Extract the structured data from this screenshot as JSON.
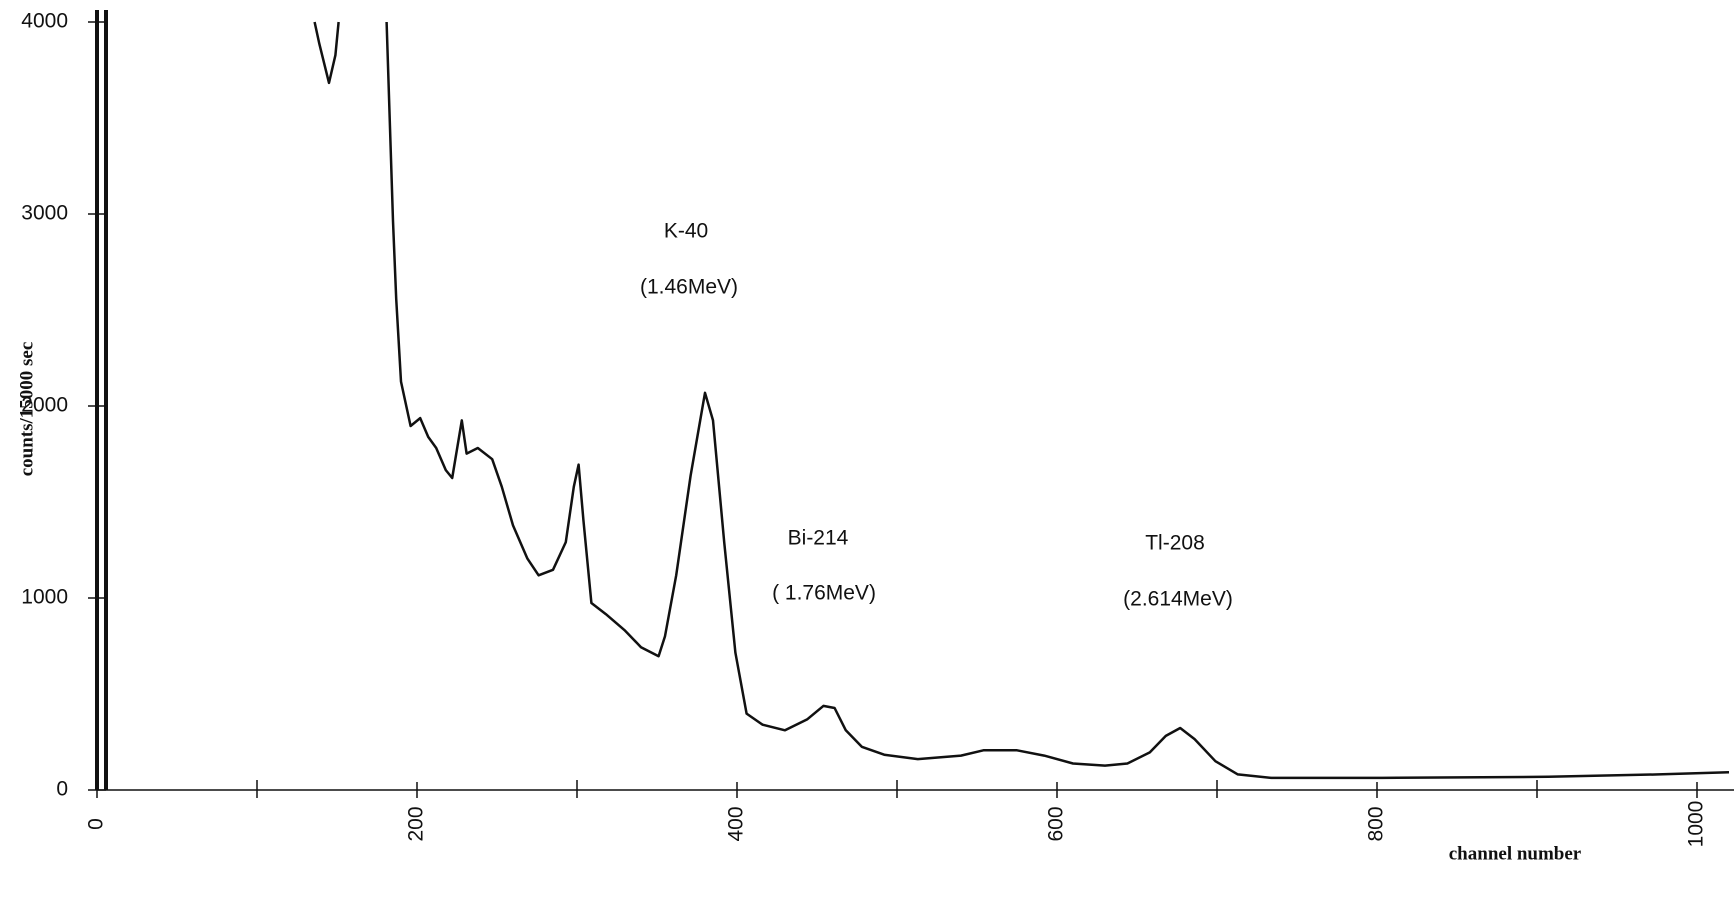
{
  "chart_data": {
    "type": "line",
    "ylabel": "counts/15000 sec",
    "xlabel": "channel number",
    "x": [
      136,
      139,
      145,
      149,
      151,
      166,
      181,
      185,
      187,
      190,
      196,
      202,
      207,
      212,
      218,
      222,
      228,
      231,
      238,
      247,
      253,
      260,
      269,
      276,
      285,
      293,
      298,
      301,
      304,
      309,
      318,
      330,
      340,
      351,
      355,
      362,
      371,
      377,
      380,
      385,
      392,
      399,
      406,
      416,
      430,
      444,
      454,
      461,
      468,
      478,
      492,
      513,
      540,
      554,
      575,
      592,
      610,
      630,
      644,
      658,
      668,
      677,
      686,
      699,
      713,
      734,
      803,
      907,
      976,
      1020
    ],
    "series": [
      {
        "color": "#111111",
        "values": [
          4000,
          3885,
          3683,
          3827,
          4000,
          null,
          4000,
          2963,
          2559,
          2127,
          1896,
          1937,
          1839,
          1781,
          1666,
          1625,
          1925,
          1752,
          1781,
          1723,
          1579,
          1378,
          1205,
          1118,
          1147,
          1291,
          1579,
          1695,
          1406,
          974,
          916,
          830,
          744,
          697,
          801,
          1118,
          1637,
          1925,
          2069,
          1925,
          1291,
          715,
          398,
          340,
          311,
          369,
          438,
          427,
          311,
          225,
          184,
          161,
          179,
          207,
          207,
          179,
          138,
          127,
          138,
          196,
          282,
          323,
          265,
          150,
          81,
          63,
          63,
          69,
          81,
          92
        ]
      }
    ],
    "xlim": [
      0,
      1020
    ],
    "ylim": [
      0,
      4000
    ],
    "xticks": [
      0,
      200,
      400,
      600,
      800,
      1000
    ],
    "xminor_ticks": [
      100,
      300,
      500,
      700,
      900
    ],
    "yticks": [
      0,
      1000,
      2000,
      3000,
      4000
    ],
    "annotations": [
      "K-40",
      "(1.46MeV)",
      "Bi-214",
      "( 1.76MeV)",
      "Tl-208",
      "(2.614MeV)"
    ]
  }
}
